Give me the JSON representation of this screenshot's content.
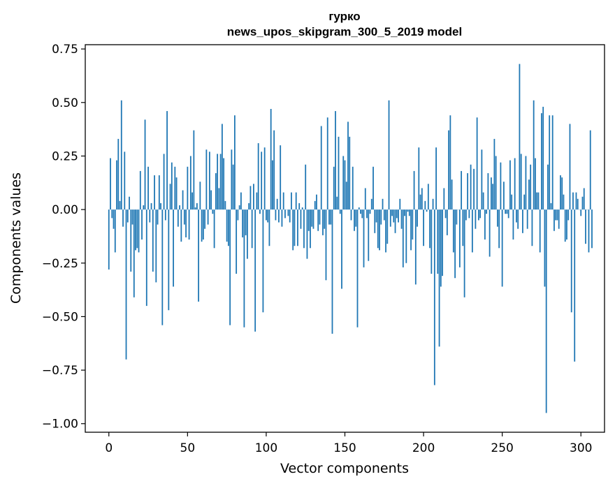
{
  "chart_data": {
    "type": "bar",
    "title_line1": "гурко",
    "title_line2": "news_upos_skipgram_300_5_2019 model",
    "xlabel": "Vector components",
    "ylabel": "Components values",
    "xlim": [
      -15,
      315
    ],
    "ylim": [
      -1.04,
      0.77
    ],
    "xticks": [
      0,
      50,
      100,
      150,
      200,
      250,
      300
    ],
    "xtick_labels": [
      "0",
      "50",
      "100",
      "150",
      "200",
      "250",
      "300"
    ],
    "yticks": [
      0.75,
      0.5,
      0.25,
      0.0,
      -0.25,
      -0.5,
      -0.75,
      -1.0
    ],
    "ytick_labels": [
      "0.75",
      "0.50",
      "0.25",
      "0.00",
      "−0.25",
      "−0.50",
      "−0.75",
      "−1.00"
    ],
    "bar_color": "#1f77b4",
    "grid": false,
    "legend": "none",
    "values": [
      -0.28,
      0.24,
      -0.04,
      -0.09,
      -0.2,
      0.23,
      0.33,
      0.04,
      0.51,
      -0.08,
      0.27,
      -0.7,
      -0.06,
      0.06,
      -0.29,
      -0.07,
      -0.41,
      -0.19,
      -0.18,
      -0.2,
      0.18,
      -0.14,
      0.02,
      0.42,
      -0.45,
      0.2,
      -0.06,
      0.03,
      -0.29,
      0.16,
      -0.34,
      -0.07,
      0.16,
      0.03,
      -0.54,
      0.26,
      -0.05,
      0.46,
      -0.47,
      0.12,
      0.22,
      -0.36,
      0.2,
      0.15,
      -0.08,
      0.02,
      -0.15,
      0.09,
      -0.07,
      -0.13,
      0.2,
      -0.14,
      0.25,
      0.08,
      0.37,
      0.01,
      0.03,
      -0.43,
      0.13,
      -0.15,
      -0.14,
      -0.09,
      0.28,
      -0.07,
      0.27,
      0.09,
      -0.02,
      -0.18,
      0.17,
      0.26,
      0.1,
      0.26,
      0.4,
      0.24,
      0.04,
      -0.15,
      -0.17,
      -0.54,
      0.28,
      0.21,
      0.44,
      -0.3,
      -0.05,
      0.02,
      0.08,
      -0.13,
      -0.55,
      -0.12,
      -0.23,
      0.03,
      0.11,
      -0.18,
      0.12,
      -0.57,
      0.08,
      0.31,
      -0.02,
      0.27,
      -0.48,
      0.29,
      -0.05,
      -0.06,
      -0.17,
      0.47,
      0.23,
      0.37,
      -0.05,
      0.05,
      -0.06,
      0.3,
      -0.08,
      0.08,
      -0.04,
      0.0,
      -0.03,
      -0.06,
      0.08,
      -0.19,
      -0.17,
      0.08,
      -0.17,
      0.03,
      -0.09,
      0.01,
      -0.18,
      0.21,
      -0.23,
      -0.1,
      -0.18,
      -0.08,
      -0.09,
      0.04,
      0.07,
      -0.1,
      -0.07,
      0.39,
      -0.12,
      -0.09,
      -0.33,
      0.43,
      -0.07,
      -0.07,
      -0.58,
      0.2,
      0.46,
      0.06,
      0.34,
      -0.02,
      -0.37,
      0.25,
      0.23,
      0.13,
      0.41,
      0.34,
      -0.05,
      0.2,
      -0.1,
      -0.08,
      -0.55,
      0.01,
      -0.02,
      -0.04,
      -0.27,
      0.1,
      -0.04,
      -0.24,
      -0.02,
      0.05,
      0.2,
      -0.11,
      -0.06,
      -0.18,
      -0.19,
      -0.07,
      0.05,
      -0.05,
      -0.2,
      -0.16,
      0.51,
      -0.08,
      -0.03,
      -0.06,
      -0.11,
      -0.04,
      -0.06,
      0.05,
      -0.09,
      -0.27,
      -0.03,
      -0.25,
      -0.01,
      -0.03,
      -0.19,
      -0.14,
      0.18,
      -0.35,
      -0.08,
      0.29,
      0.07,
      0.1,
      -0.17,
      0.04,
      -0.01,
      0.12,
      -0.18,
      -0.3,
      0.05,
      -0.82,
      0.29,
      -0.3,
      -0.64,
      -0.36,
      -0.31,
      0.1,
      -0.04,
      -0.12,
      0.37,
      0.44,
      0.14,
      -0.2,
      -0.32,
      -0.07,
      0.0,
      -0.27,
      0.18,
      -0.17,
      -0.41,
      -0.05,
      0.17,
      -0.04,
      0.21,
      -0.2,
      0.19,
      -0.09,
      0.43,
      -0.05,
      -0.04,
      0.28,
      0.08,
      -0.14,
      -0.02,
      0.17,
      -0.22,
      0.15,
      0.12,
      0.33,
      0.25,
      -0.08,
      -0.18,
      0.22,
      -0.36,
      0.13,
      -0.02,
      -0.02,
      -0.04,
      0.23,
      0.07,
      -0.14,
      0.24,
      -0.06,
      -0.09,
      0.68,
      0.26,
      -0.11,
      0.07,
      0.25,
      -0.09,
      0.14,
      0.21,
      -0.17,
      0.51,
      0.24,
      0.08,
      0.08,
      -0.2,
      0.45,
      0.48,
      -0.36,
      -0.95,
      0.21,
      0.44,
      0.03,
      0.44,
      -0.1,
      -0.05,
      -0.05,
      -0.09,
      0.16,
      0.15,
      0.07,
      -0.15,
      -0.14,
      -0.05,
      0.4,
      -0.48,
      0.08,
      -0.71,
      0.08,
      0.05,
      0.0,
      -0.03,
      0.06,
      0.1,
      -0.16,
      0.0,
      -0.2,
      0.37,
      -0.18
    ]
  }
}
